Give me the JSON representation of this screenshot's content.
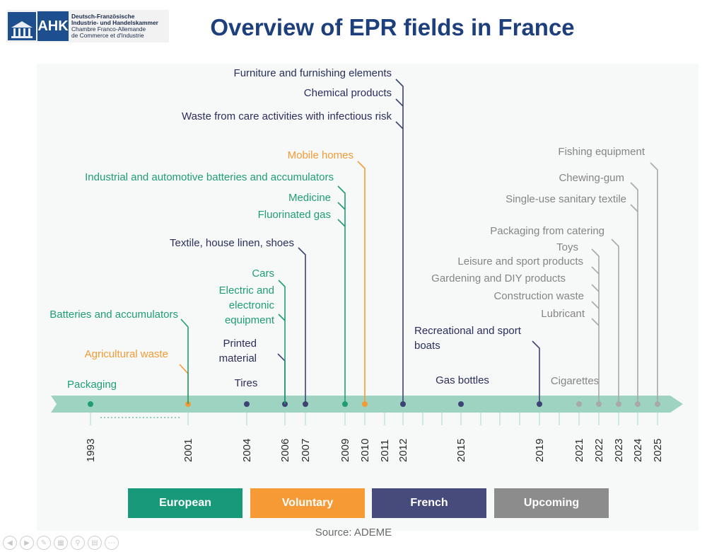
{
  "title": "Overview of EPR fields in France",
  "logo": {
    "short": "AHK",
    "line1": "Deutsch-Französische",
    "line2": "Industrie- und Handelskammer",
    "line3": "Chambre Franco-Allemande",
    "line4": "de Commerce et d'Industrie"
  },
  "colors": {
    "European": "#1f9e74",
    "Voluntary": "#f49b36",
    "French": "#3e4375",
    "Upcoming": "#a9a9a9",
    "axis": "#9fd3c1",
    "title": "#1d3f7c",
    "text_french": "#2a2f5b",
    "text_upcoming": "#858585"
  },
  "legend": [
    {
      "label": "European",
      "color": "#17997a"
    },
    {
      "label": "Voluntary",
      "color": "#f59a35"
    },
    {
      "label": "French",
      "color": "#474b7c"
    },
    {
      "label": "Upcoming",
      "color": "#8c8c8c"
    }
  ],
  "source": "Source: ADEME",
  "years": [
    {
      "year": "1993",
      "dot": "European"
    },
    {
      "year": "2001",
      "dot": "Voluntary"
    },
    {
      "year": "2004",
      "dot": "French"
    },
    {
      "year": "2006",
      "dot": "French"
    },
    {
      "year": "2007",
      "dot": "French"
    },
    {
      "year": "2009",
      "dot": "European"
    },
    {
      "year": "2010",
      "dot": "Voluntary"
    },
    {
      "year": "2011",
      "dot": null
    },
    {
      "year": "2012",
      "dot": "French"
    },
    {
      "year": "2015",
      "dot": "French"
    },
    {
      "year": "2019",
      "dot": "French"
    },
    {
      "year": "2021",
      "dot": "Upcoming"
    },
    {
      "year": "2022",
      "dot": "Upcoming"
    },
    {
      "year": "2023",
      "dot": "Upcoming"
    },
    {
      "year": "2024",
      "dot": "Upcoming"
    },
    {
      "year": "2025",
      "dot": "Upcoming"
    }
  ],
  "entries": [
    {
      "year": "1993",
      "category": "European",
      "labels": [
        "Packaging"
      ]
    },
    {
      "year": "2001",
      "category": "Voluntary",
      "labels": [
        "Agricultural waste"
      ]
    },
    {
      "year": "2001",
      "category": "European",
      "labels": [
        "Batteries and accumulators"
      ]
    },
    {
      "year": "2004",
      "category": "French",
      "labels": [
        "Tires"
      ]
    },
    {
      "year": "2006",
      "category": "French",
      "labels": [
        "Printed",
        "material"
      ]
    },
    {
      "year": "2006",
      "category": "European",
      "labels": [
        "Electric and",
        "electronic",
        "equipment"
      ]
    },
    {
      "year": "2006",
      "category": "European",
      "labels": [
        "Cars"
      ]
    },
    {
      "year": "2007",
      "category": "French",
      "labels": [
        "Textile, house linen, shoes"
      ]
    },
    {
      "year": "2009",
      "category": "European",
      "labels": [
        "Fluorinated gas"
      ]
    },
    {
      "year": "2009",
      "category": "European",
      "labels": [
        "Medicine"
      ]
    },
    {
      "year": "2009",
      "category": "European",
      "labels": [
        "Industrial and automotive batteries and accumulators"
      ]
    },
    {
      "year": "2010",
      "category": "Voluntary",
      "labels": [
        "Mobile homes"
      ]
    },
    {
      "year": "2012",
      "category": "French",
      "labels": [
        "Waste from care activities with infectious risk"
      ]
    },
    {
      "year": "2012",
      "category": "French",
      "labels": [
        "Chemical products"
      ]
    },
    {
      "year": "2012",
      "category": "French",
      "labels": [
        "Furniture and furnishing elements"
      ]
    },
    {
      "year": "2015",
      "category": "French",
      "labels": [
        "Gas bottles"
      ]
    },
    {
      "year": "2019",
      "category": "French",
      "labels": [
        "Recreational and sport",
        "boats"
      ]
    },
    {
      "year": "2021",
      "category": "Upcoming",
      "labels": [
        "Cigarettes"
      ]
    },
    {
      "year": "2022",
      "category": "Upcoming",
      "labels": [
        "Lubricant"
      ]
    },
    {
      "year": "2022",
      "category": "Upcoming",
      "labels": [
        "Construction waste"
      ]
    },
    {
      "year": "2022",
      "category": "Upcoming",
      "labels": [
        "Gardening and DIY products"
      ]
    },
    {
      "year": "2022",
      "category": "Upcoming",
      "labels": [
        "Leisure and sport products"
      ]
    },
    {
      "year": "2022",
      "category": "Upcoming",
      "labels": [
        "Toys"
      ]
    },
    {
      "year": "2023",
      "category": "Upcoming",
      "labels": [
        "Packaging from catering"
      ]
    },
    {
      "year": "2024",
      "category": "Upcoming",
      "labels": [
        "Single-use sanitary textile"
      ]
    },
    {
      "year": "2024",
      "category": "Upcoming",
      "labels": [
        "Chewing-gum"
      ]
    },
    {
      "year": "2025",
      "category": "Upcoming",
      "labels": [
        "Fishing equipment"
      ]
    }
  ],
  "controls": [
    "previous-icon",
    "next-icon",
    "pen-icon",
    "slides-icon",
    "zoom-icon",
    "subtitles-icon",
    "more-icon"
  ]
}
